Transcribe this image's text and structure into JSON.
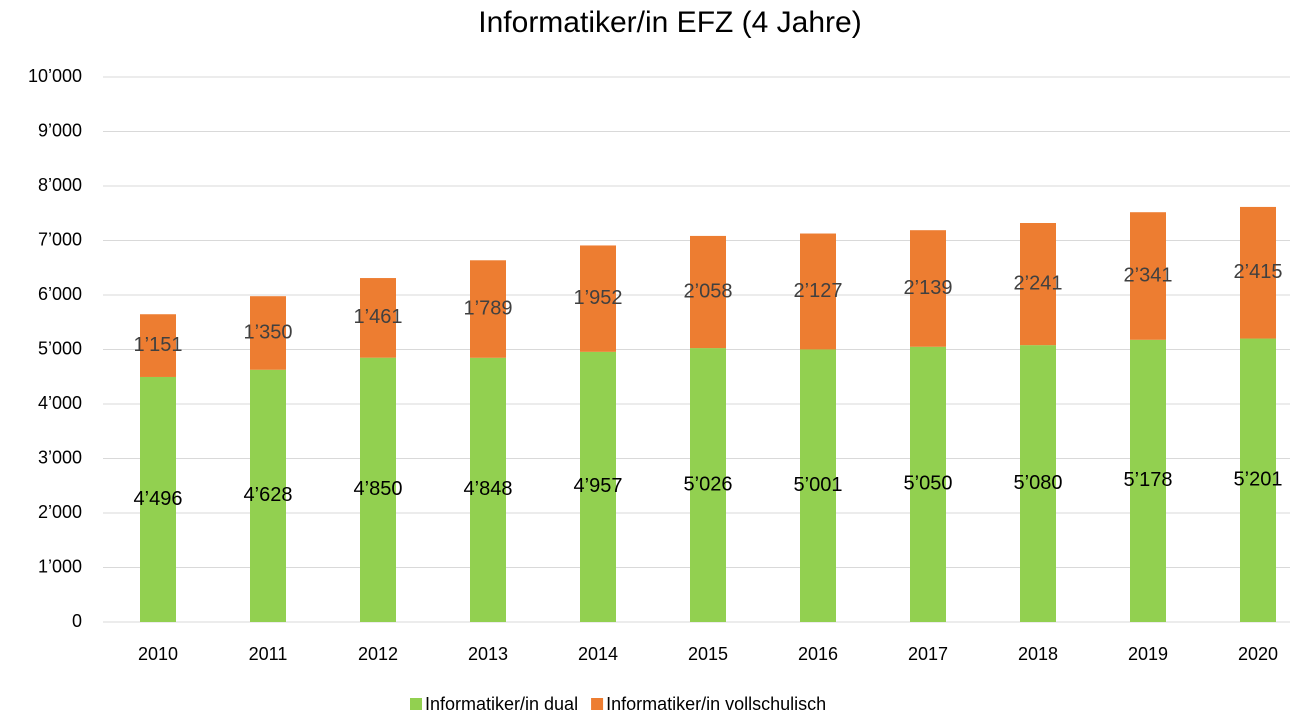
{
  "chart_data": {
    "type": "stacked_bar",
    "title": "Informatiker/in EFZ (4 Jahre)",
    "categories": [
      "2010",
      "2011",
      "2012",
      "2013",
      "2014",
      "2015",
      "2016",
      "2017",
      "2018",
      "2019",
      "2020"
    ],
    "series": [
      {
        "name": "Informatiker/in dual",
        "color": "#92d050",
        "values": [
          4496,
          4628,
          4850,
          4848,
          4957,
          5026,
          5001,
          5050,
          5080,
          5178,
          5201
        ],
        "value_labels": [
          "4’496",
          "4’628",
          "4’850",
          "4’848",
          "4’957",
          "5’026",
          "5’001",
          "5’050",
          "5’080",
          "5’178",
          "5’201"
        ]
      },
      {
        "name": "Informatiker/in vollschulisch",
        "color": "#ed7d31",
        "values": [
          1151,
          1350,
          1461,
          1789,
          1952,
          2058,
          2127,
          2139,
          2241,
          2341,
          2415
        ],
        "value_labels": [
          "1’151",
          "1’350",
          "1’461",
          "1’789",
          "1’952",
          "2’058",
          "2’127",
          "2’139",
          "2’241",
          "2’341",
          "2’415"
        ]
      }
    ],
    "ylim": [
      0,
      10000
    ],
    "yticks": [
      0,
      {
        "value": 1000,
        "label": "1’000"
      },
      {
        "value": 2000,
        "label": "2’000"
      },
      {
        "value": 3000,
        "label": "3’000"
      },
      {
        "value": 4000,
        "label": "4’000"
      },
      {
        "value": 5000,
        "label": "5’000"
      },
      {
        "value": 6000,
        "label": "6’000"
      },
      {
        "value": 7000,
        "label": "7’000"
      },
      {
        "value": 8000,
        "label": "8’000"
      },
      {
        "value": 9000,
        "label": "9’000"
      },
      {
        "value": 10000,
        "label": "10’000"
      }
    ],
    "grid": true,
    "legend": "bottom"
  }
}
